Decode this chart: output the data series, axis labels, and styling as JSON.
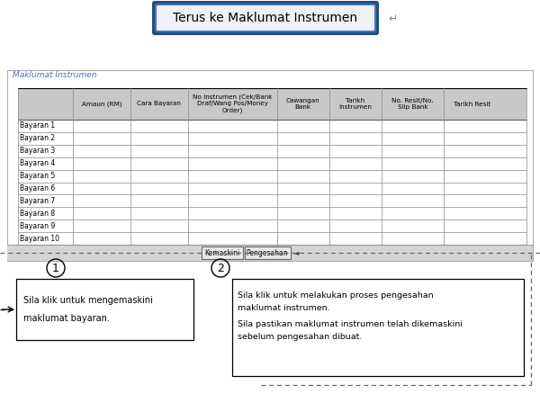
{
  "title": "Terus ke Maklumat Instrumen",
  "section_label": "Maklumat Instrumen",
  "col_headers": [
    "",
    "Amaun (RM)",
    "Cara Bayaran",
    "No Instrumen (Cek/Bank\nDraf/Wang Pos/Money\nOrder)",
    "Cawangan\nBank",
    "Tarikh\nInstrumen",
    "No. Resit/No.\nSlip Bank",
    "Tarikh Resit"
  ],
  "rows": [
    "Bayaran 1",
    "Bayaran 2",
    "Bayaran 3",
    "Bayaran 4",
    "Bayaran 5",
    "Bayaran 6",
    "Bayaran 7",
    "Bayaran 8",
    "Bayaran 9",
    "Bayaran 10"
  ],
  "buttons": [
    "Kemaskini",
    "Pengesahan"
  ],
  "circle1_label": "1",
  "circle2_label": "2",
  "text_box1_line1": "Sila klik untuk mengemaskini",
  "text_box1_line2": "maklumat bayaran.",
  "text_box2_lines": [
    "Sila klik untuk melakukan proses pengesahan",
    "maklumat instrumen.",
    "Sila pastikan maklumat instrumen telah dikemaskini",
    "sebelum pengesahan dibuat."
  ],
  "bg_color": "#ffffff",
  "header_bg": "#c8c8c8",
  "blue_border": "#1f4e79",
  "blue_border2": "#4472c4",
  "section_text_color": "#4472c4",
  "dashed_color": "#666666",
  "grid_color": "#888888",
  "col_props": [
    0.108,
    0.113,
    0.113,
    0.175,
    0.103,
    0.103,
    0.123,
    0.11
  ]
}
